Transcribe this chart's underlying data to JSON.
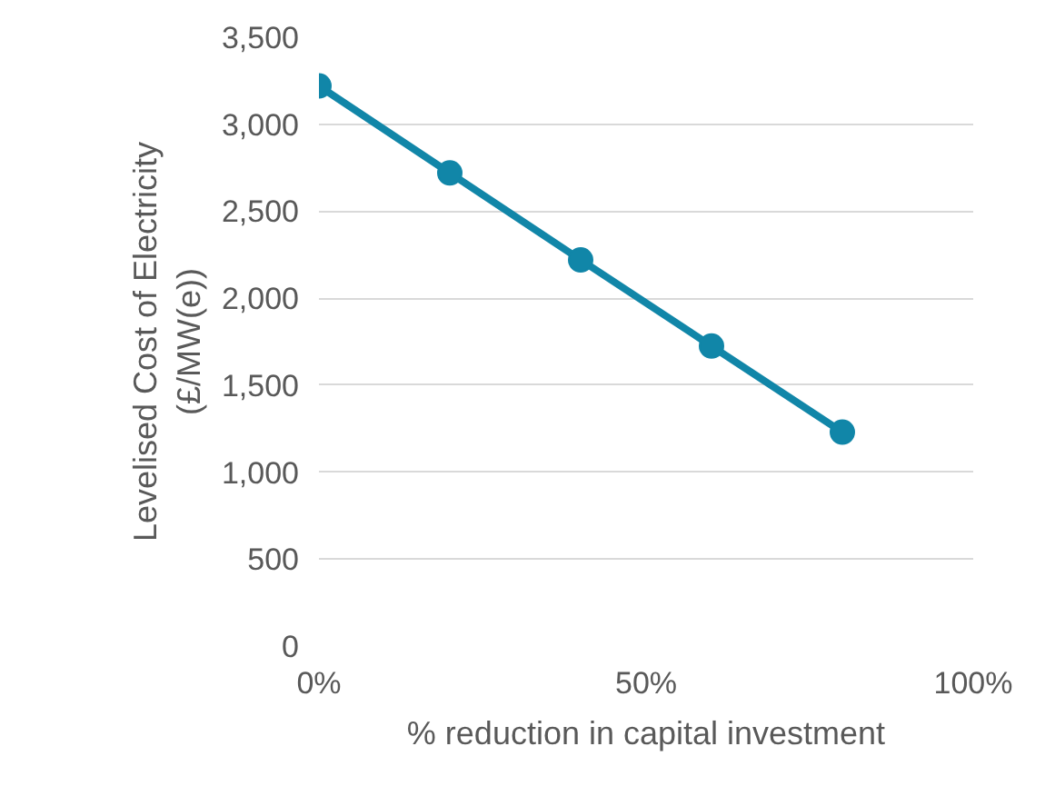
{
  "chart_data": {
    "type": "line",
    "x": [
      0,
      20,
      40,
      60,
      80
    ],
    "series": [
      {
        "color": "#1186a8",
        "values": [
          3220,
          2720,
          2220,
          1725,
          1230
        ]
      }
    ],
    "xlabel": "% reduction in capital investment",
    "ylabel": "Levelised Cost of Electricity\n(£/MW(e))",
    "xlim": [
      0,
      100
    ],
    "xticks": [
      {
        "value": 0,
        "label": "0%"
      },
      {
        "value": 50,
        "label": "50%"
      },
      {
        "value": 100,
        "label": "100%"
      }
    ],
    "ylim": [
      0,
      3500
    ],
    "yticks": [
      {
        "value": 0,
        "label": "0"
      },
      {
        "value": 500,
        "label": "500"
      },
      {
        "value": 1000,
        "label": "1,000"
      },
      {
        "value": 1500,
        "label": "1,500"
      },
      {
        "value": 2000,
        "label": "2,000"
      },
      {
        "value": 2500,
        "label": "2,500"
      },
      {
        "value": 3000,
        "label": "3,000"
      },
      {
        "value": 3500,
        "label": "3,500"
      }
    ],
    "grid": "y",
    "marker": "circle",
    "line_style": "solid"
  }
}
